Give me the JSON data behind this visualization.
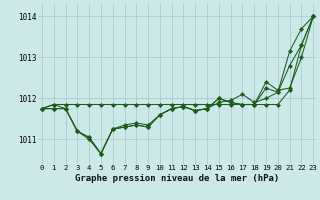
{
  "title": "Graphe pression niveau de la mer (hPa)",
  "background_color": "#cce8e8",
  "grid_color": "#aacccc",
  "line_color": "#1e5c1e",
  "ylim": [
    1010.4,
    1014.3
  ],
  "yticks": [
    1011,
    1012,
    1013,
    1014
  ],
  "xlim": [
    -0.3,
    23.3
  ],
  "series": [
    [
      1011.75,
      1011.85,
      1011.85,
      1011.85,
      1011.85,
      1011.85,
      1011.85,
      1011.85,
      1011.85,
      1011.85,
      1011.85,
      1011.85,
      1011.85,
      1011.85,
      1011.85,
      1011.85,
      1011.85,
      1011.85,
      1011.85,
      1011.85,
      1011.85,
      1012.2,
      1013.3,
      1014.0
    ],
    [
      1011.75,
      1011.85,
      1011.75,
      1011.2,
      1011.0,
      1010.65,
      1011.25,
      1011.35,
      1011.4,
      1011.35,
      1011.6,
      1011.75,
      1011.8,
      1011.7,
      1011.75,
      1011.9,
      1011.95,
      1012.1,
      1011.9,
      1012.0,
      1012.15,
      1012.8,
      1013.3,
      1014.0
    ],
    [
      1011.75,
      1011.75,
      1011.75,
      1011.2,
      1011.05,
      1010.65,
      1011.25,
      1011.3,
      1011.35,
      1011.3,
      1011.6,
      1011.75,
      1011.8,
      1011.7,
      1011.75,
      1012.0,
      1011.9,
      1011.85,
      1011.85,
      1012.4,
      1012.2,
      1012.25,
      1013.0,
      1014.0
    ],
    [
      1011.75,
      1011.75,
      1011.75,
      1011.2,
      1011.05,
      1010.65,
      1011.25,
      1011.3,
      1011.35,
      1011.3,
      1011.6,
      1011.75,
      1011.8,
      1011.7,
      1011.75,
      1012.0,
      1011.9,
      1011.85,
      1011.85,
      1012.25,
      1012.15,
      1013.15,
      1013.7,
      1014.0
    ]
  ],
  "x_labels": [
    "0",
    "1",
    "2",
    "3",
    "4",
    "5",
    "6",
    "7",
    "8",
    "9",
    "10",
    "11",
    "12",
    "13",
    "14",
    "15",
    "16",
    "17",
    "18",
    "19",
    "20",
    "21",
    "22",
    "23"
  ],
  "ylabel_fontsize": 5.5,
  "xlabel_fontsize": 6.5,
  "tick_fontsize": 5.2
}
